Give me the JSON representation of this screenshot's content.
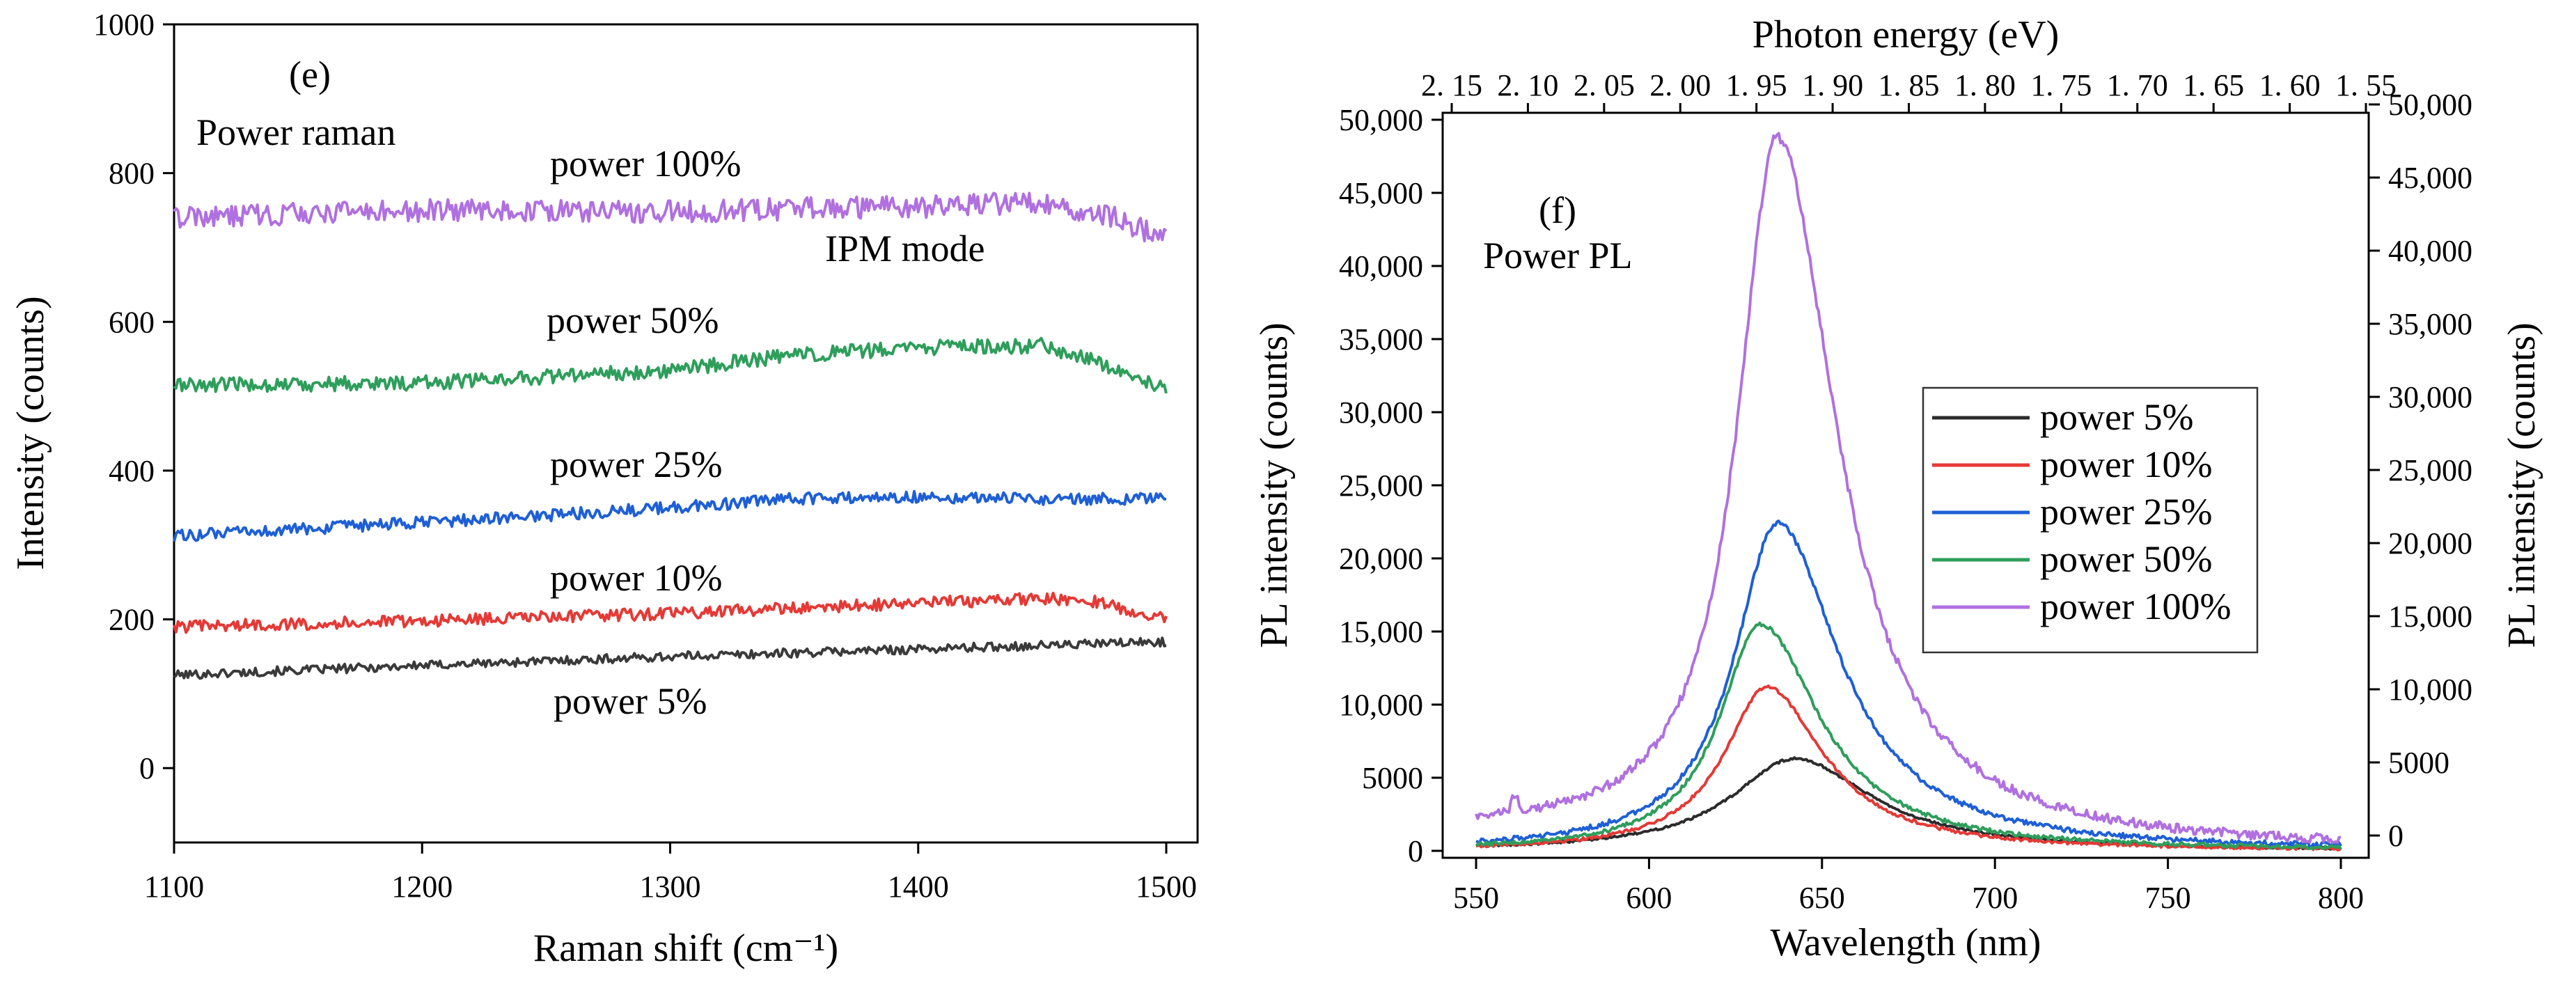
{
  "chart_data": [
    {
      "id": "e",
      "type": "line",
      "panel_label": "(e)",
      "title": "Power raman",
      "annotation": "IPM mode",
      "xlabel": "Raman shift (cm⁻¹)",
      "ylabel": "Intensity (counts)",
      "xlim": [
        1100,
        1500
      ],
      "ylim": [
        -100,
        1000
      ],
      "xticks": [
        1100,
        1200,
        1300,
        1400,
        1500
      ],
      "yticks": [
        0,
        200,
        400,
        600,
        800,
        1000
      ],
      "series": [
        {
          "name": "power 5%",
          "color": "#3a3a3a",
          "x": [
            1100,
            1200,
            1300,
            1400,
            1500
          ],
          "values": [
            125,
            138,
            150,
            160,
            170
          ],
          "noise": 6
        },
        {
          "name": "power 10%",
          "color": "#e53935",
          "x": [
            1100,
            1200,
            1300,
            1400,
            1450,
            1470,
            1500
          ],
          "values": [
            190,
            198,
            208,
            222,
            228,
            225,
            200
          ],
          "noise": 8
        },
        {
          "name": "power 25%",
          "color": "#1e5fd6",
          "x": [
            1100,
            1200,
            1300,
            1350,
            1400,
            1450,
            1500
          ],
          "values": [
            312,
            330,
            350,
            362,
            365,
            362,
            362
          ],
          "noise": 8
        },
        {
          "name": "power 50%",
          "color": "#2e9e5b",
          "x": [
            1100,
            1200,
            1300,
            1350,
            1400,
            1450,
            1470,
            1500
          ],
          "values": [
            515,
            518,
            535,
            555,
            565,
            568,
            550,
            510
          ],
          "noise": 10
        },
        {
          "name": "power 100%",
          "color": "#b070e0",
          "x": [
            1100,
            1200,
            1300,
            1350,
            1400,
            1450,
            1480,
            1500
          ],
          "values": [
            740,
            750,
            748,
            752,
            755,
            760,
            740,
            710
          ],
          "noise": 15
        }
      ]
    },
    {
      "id": "f",
      "type": "line",
      "panel_label": "(f)",
      "title": "Power PL",
      "xlabel": "Wavelength (nm)",
      "ylabel": "PL intensity (counts)",
      "ylabel_right": "PL intensity (counts)",
      "top_xlabel": "Photon energy (eV)",
      "xlim": [
        540,
        810
      ],
      "ylim": [
        0,
        50000
      ],
      "xticks": [
        550,
        600,
        650,
        700,
        750,
        800
      ],
      "yticks_left": [
        "0",
        "5000",
        "10,000",
        "15,000",
        "20,000",
        "25,000",
        "30,000",
        "35,000",
        "40,000",
        "45,000",
        "50,000"
      ],
      "yticks_right": [
        "0",
        "5000",
        "10,000",
        "15,000",
        "20,000",
        "25,000",
        "30,000",
        "35,000",
        "40,000",
        "45,000",
        "50,000"
      ],
      "top_ticks": [
        "2. 15",
        "2. 10",
        "2. 05",
        "2. 00",
        "1. 95",
        "1. 90",
        "1. 85",
        "1. 80",
        "1. 75",
        "1. 70",
        "1. 65",
        "1. 60",
        "1. 55"
      ],
      "legend": [
        "power 5%",
        "power 10%",
        "power 25%",
        "power 50%",
        "power 100%"
      ],
      "series": [
        {
          "name": "power 5%",
          "color": "#2b2b2b",
          "peak_x": 642,
          "peak": 6300,
          "base": 0,
          "w_left": 22,
          "w_right": 27
        },
        {
          "name": "power 10%",
          "color": "#e53935",
          "peak_x": 634,
          "peak": 11200,
          "base": 0,
          "w_left": 15,
          "w_right": 20
        },
        {
          "name": "power 25%",
          "color": "#1e5fd6",
          "peak_x": 637,
          "peak": 22400,
          "base": 0,
          "w_left": 15,
          "w_right": 22
        },
        {
          "name": "power 50%",
          "color": "#2e9e5b",
          "peak_x": 632,
          "peak": 15500,
          "base": 0,
          "w_left": 14,
          "w_right": 21
        },
        {
          "name": "power 100%",
          "color": "#b070e0",
          "peak_x": 637,
          "peak": 48500,
          "base": 1200,
          "w_left": 14,
          "w_right": 21
        }
      ]
    }
  ]
}
